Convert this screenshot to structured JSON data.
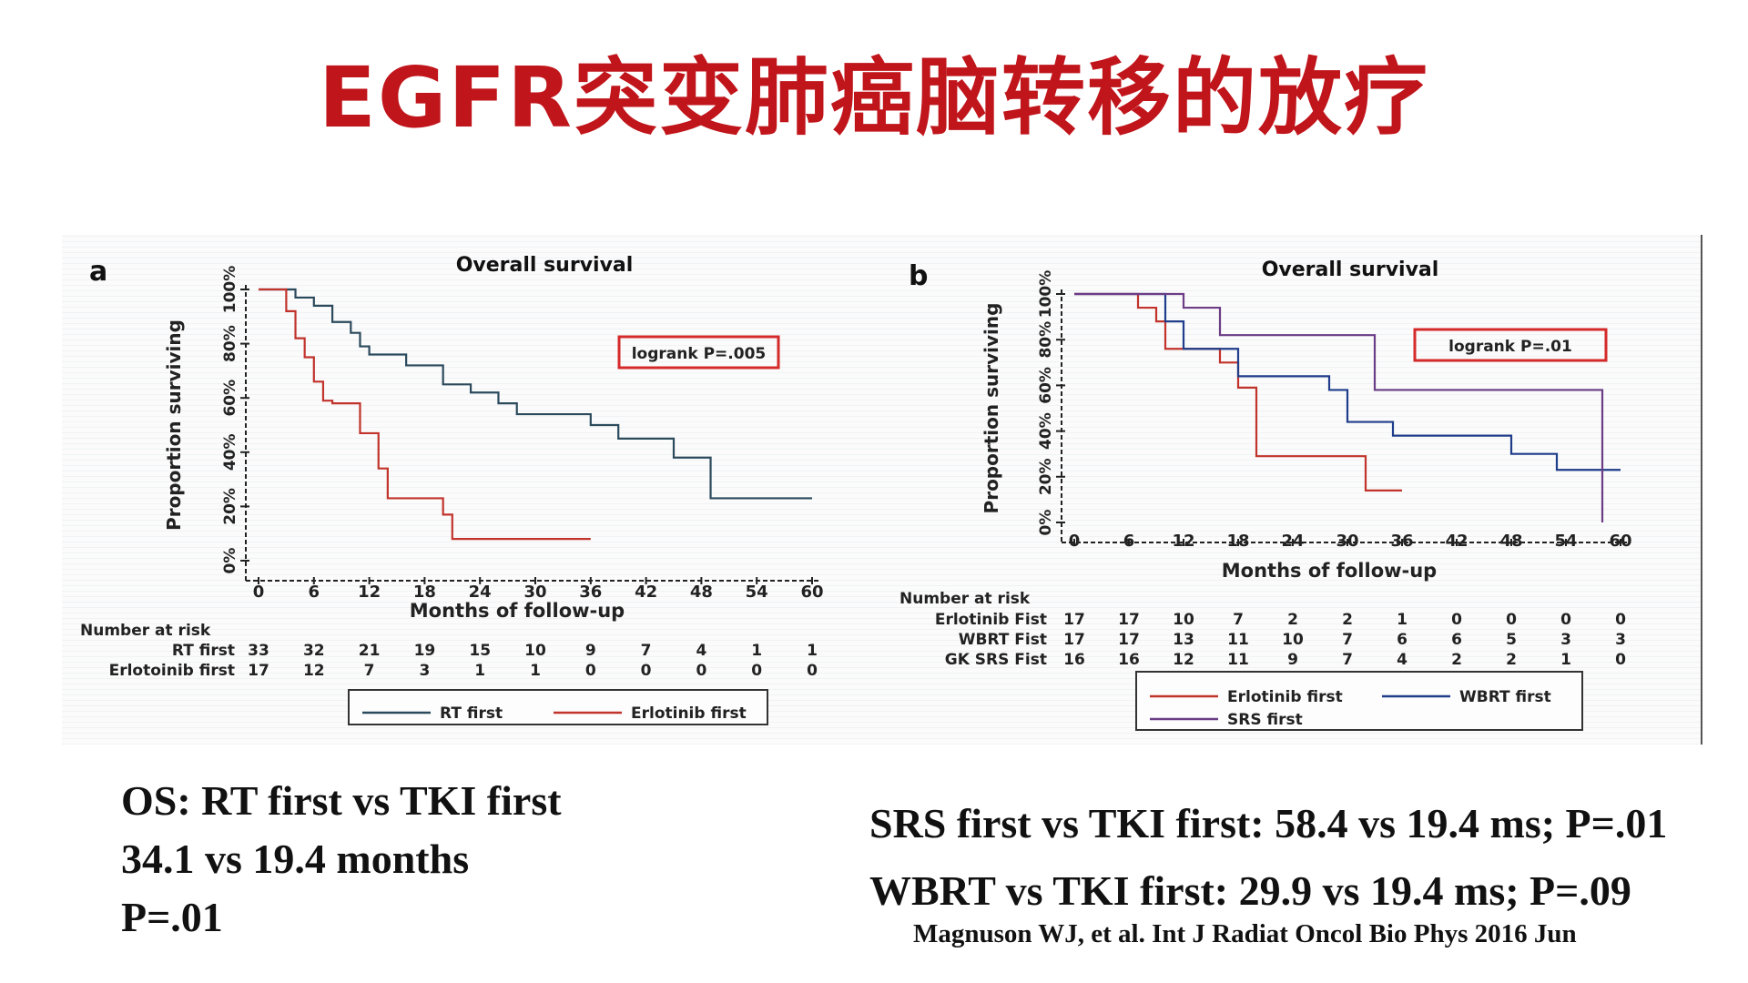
{
  "title": "EGFR突变肺癌脑转移的放疗",
  "caption_left": [
    "OS: RT first vs TKI first",
    "34.1 vs 19.4 months",
    "P=.01"
  ],
  "caption_right": [
    "SRS first vs TKI first: 58.4 vs 19.4 ms; P=.01",
    "WBRT vs TKI first: 29.9 vs 19.4 ms; P=.09"
  ],
  "citation": "Magnuson WJ, et al. Int J Radiat Oncol Bio Phys 2016 Jun",
  "chart_data": [
    {
      "panel_label": "a",
      "type": "line",
      "step": true,
      "title": "Overall survival",
      "xlabel": "Months of follow-up",
      "ylabel": "Proportion surviving",
      "xticks": [
        0,
        6,
        12,
        18,
        24,
        30,
        36,
        42,
        48,
        54,
        60
      ],
      "yticks": [
        "0%",
        "20%",
        "40%",
        "60%",
        "80%",
        "100%"
      ],
      "xlim": [
        0,
        60
      ],
      "ylim": [
        0,
        100
      ],
      "annotation": "logrank P=.005",
      "series": [
        {
          "name": "RT first",
          "color": "#2b4a5c",
          "x": [
            0,
            2,
            4,
            6,
            8,
            10,
            11,
            12,
            16,
            20,
            23,
            26,
            28,
            36,
            39,
            45,
            49,
            60
          ],
          "y": [
            100,
            100,
            97,
            94,
            88,
            84,
            79,
            76,
            72,
            65,
            62,
            58,
            54,
            50,
            45,
            38,
            23,
            23
          ]
        },
        {
          "name": "Erlotoinib first",
          "color": "#c1332b",
          "x": [
            0,
            3,
            4,
            5,
            6,
            7,
            8,
            11,
            13,
            14,
            20,
            21,
            36
          ],
          "y": [
            100,
            92,
            82,
            75,
            66,
            59,
            58,
            47,
            34,
            23,
            17,
            8,
            8
          ]
        }
      ],
      "risk_table": {
        "header": "Number at risk",
        "rows": [
          {
            "label": "RT first",
            "values": [
              "33",
              "32",
              "21",
              "19",
              "15",
              "10",
              "9",
              "7",
              "4",
              "1",
              "1"
            ]
          },
          {
            "label": "Erlotoinib first",
            "values": [
              "17",
              "12",
              "7",
              "3",
              "1",
              "1",
              "0",
              "0",
              "0",
              "0",
              "0"
            ]
          }
        ]
      },
      "legend": [
        "RT first",
        "Erlotinib first"
      ]
    },
    {
      "panel_label": "b",
      "type": "line",
      "step": true,
      "title": "Overall survival",
      "xlabel": "Months of follow-up",
      "ylabel": "Proportion surviving",
      "xticks": [
        0,
        6,
        12,
        18,
        24,
        30,
        36,
        42,
        48,
        54,
        60
      ],
      "yticks": [
        "0%",
        "20%",
        "40%",
        "60%",
        "80%",
        "100%"
      ],
      "xlim": [
        0,
        60
      ],
      "ylim": [
        0,
        100
      ],
      "annotation": "logrank P=.01",
      "series": [
        {
          "name": "Erlotinib first",
          "color": "#c1332b",
          "x": [
            0,
            7,
            9,
            10,
            12,
            16,
            18,
            20,
            32,
            36
          ],
          "y": [
            100,
            94,
            88,
            76,
            76,
            70,
            59,
            29,
            14,
            14
          ]
        },
        {
          "name": "WBRT first",
          "color": "#1f3d8a",
          "x": [
            0,
            7,
            10,
            12,
            18,
            28,
            30,
            35,
            48,
            53,
            60
          ],
          "y": [
            100,
            100,
            88,
            76,
            64,
            58,
            44,
            38,
            30,
            23,
            23
          ]
        },
        {
          "name": "SRS first",
          "color": "#6b3d86",
          "x": [
            0,
            12,
            16,
            33,
            58,
            58
          ],
          "y": [
            100,
            94,
            82,
            58,
            58,
            0
          ]
        }
      ],
      "risk_table": {
        "header": "Number at risk",
        "rows": [
          {
            "label": "Erlotinib Fist",
            "values": [
              "17",
              "17",
              "10",
              "7",
              "2",
              "2",
              "1",
              "0",
              "0",
              "0",
              "0"
            ]
          },
          {
            "label": "WBRT Fist",
            "values": [
              "17",
              "17",
              "13",
              "11",
              "10",
              "7",
              "6",
              "6",
              "5",
              "3",
              "3"
            ]
          },
          {
            "label": "GK SRS Fist",
            "values": [
              "16",
              "16",
              "12",
              "11",
              "9",
              "7",
              "4",
              "2",
              "2",
              "1",
              "0"
            ]
          }
        ]
      },
      "legend": [
        "Erlotinib first",
        "WBRT first",
        "SRS first"
      ]
    }
  ]
}
